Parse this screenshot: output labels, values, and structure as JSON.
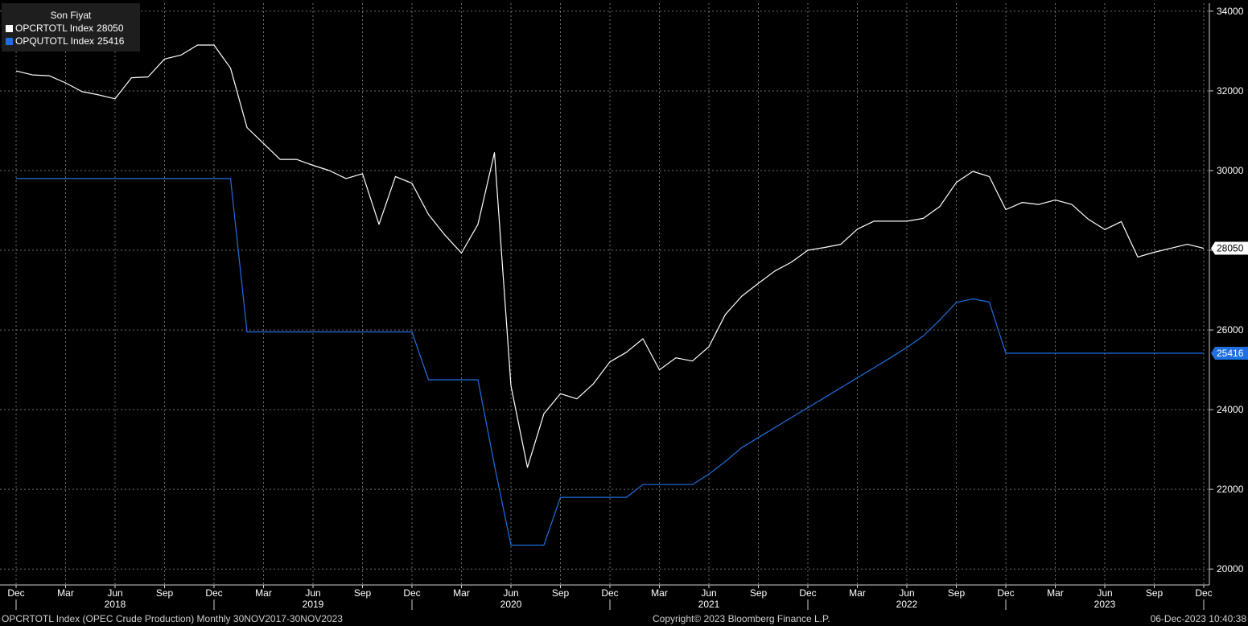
{
  "legend": {
    "title": "Son Fiyat",
    "series": [
      {
        "label": "OPCRTOTL Index",
        "value": "28050",
        "color": "#ffffff"
      },
      {
        "label": "OPQUTOTL Index",
        "value": "25416",
        "color": "#1f6fe0"
      }
    ]
  },
  "footer": {
    "left": "OPCRTOTL Index (OPEC Crude Production)  Monthly 30NOV2017-30NOV2023",
    "center": "Copyright© 2023 Bloomberg Finance L.P.",
    "right": "06-Dec-2023 10:40:38"
  },
  "colors": {
    "background": "#000000",
    "grid": "#6e6e6e",
    "axis": "#d0d0d0",
    "crude": "#ffffff",
    "quota": "#1f6fe0",
    "crude_tag_bg": "#ffffff",
    "crude_tag_text": "#000000",
    "quota_tag_bg": "#1f6fe0",
    "quota_tag_text": "#ffffff"
  },
  "chart_data": {
    "type": "line",
    "title": "",
    "xlabel": "",
    "ylabel": "",
    "x_start": "2017-12",
    "ylim": [
      19600,
      34200
    ],
    "yticks": [
      20000,
      22000,
      24000,
      26000,
      28000,
      30000,
      32000,
      34000
    ],
    "grid": true,
    "legend_position": "top-left",
    "x_ticks": [
      {
        "i": 0,
        "label": "Dec"
      },
      {
        "i": 3,
        "label": "Mar"
      },
      {
        "i": 6,
        "label": "Jun"
      },
      {
        "i": 9,
        "label": "Sep"
      },
      {
        "i": 12,
        "label": "Dec"
      },
      {
        "i": 15,
        "label": "Mar"
      },
      {
        "i": 18,
        "label": "Jun"
      },
      {
        "i": 21,
        "label": "Sep"
      },
      {
        "i": 24,
        "label": "Dec"
      },
      {
        "i": 27,
        "label": "Mar"
      },
      {
        "i": 30,
        "label": "Jun"
      },
      {
        "i": 33,
        "label": "Sep"
      },
      {
        "i": 36,
        "label": "Dec"
      },
      {
        "i": 39,
        "label": "Mar"
      },
      {
        "i": 42,
        "label": "Jun"
      },
      {
        "i": 45,
        "label": "Sep"
      },
      {
        "i": 48,
        "label": "Dec"
      },
      {
        "i": 51,
        "label": "Mar"
      },
      {
        "i": 54,
        "label": "Jun"
      },
      {
        "i": 57,
        "label": "Sep"
      },
      {
        "i": 60,
        "label": "Dec"
      },
      {
        "i": 63,
        "label": "Mar"
      },
      {
        "i": 66,
        "label": "Jun"
      },
      {
        "i": 69,
        "label": "Sep"
      },
      {
        "i": 72,
        "label": "Dec"
      }
    ],
    "year_labels": [
      {
        "i": 6,
        "label": "2018"
      },
      {
        "i": 18,
        "label": "2019"
      },
      {
        "i": 30,
        "label": "2020"
      },
      {
        "i": 42,
        "label": "2021"
      },
      {
        "i": 54,
        "label": "2022"
      },
      {
        "i": 66,
        "label": "2023"
      }
    ],
    "series": [
      {
        "name": "OPCRTOTL Index",
        "last_value": "28050",
        "values": [
          32500,
          32400,
          32380,
          32200,
          31980,
          31900,
          31800,
          32330,
          32350,
          32800,
          32900,
          33150,
          33150,
          32570,
          31080,
          30680,
          30280,
          30280,
          30130,
          30000,
          29800,
          29920,
          28650,
          29850,
          29680,
          28900,
          28380,
          27930,
          28650,
          30450,
          24600,
          22550,
          23900,
          24400,
          24270,
          24650,
          25200,
          25440,
          25780,
          25000,
          25300,
          25220,
          25580,
          26390,
          26850,
          27170,
          27480,
          27700,
          28000,
          28070,
          28150,
          28530,
          28730,
          28730,
          28730,
          28800,
          29100,
          29700,
          29980,
          29850,
          29020,
          29200,
          29150,
          29260,
          29150,
          28780,
          28520,
          28720,
          27830,
          27950,
          28050,
          28150,
          28050
        ]
      },
      {
        "name": "OPQUTOTL Index",
        "last_value": "25416",
        "values": [
          29800,
          29800,
          29800,
          29800,
          29800,
          29800,
          29800,
          29800,
          29800,
          29800,
          29800,
          29800,
          29800,
          29800,
          25950,
          25950,
          25950,
          25950,
          25950,
          25950,
          25950,
          25950,
          25950,
          25950,
          25950,
          24750,
          24750,
          24750,
          24750,
          22600,
          20600,
          20600,
          20600,
          21800,
          21800,
          21800,
          21800,
          21800,
          22120,
          22120,
          22120,
          22120,
          22380,
          22700,
          23050,
          23300,
          23550,
          23800,
          24050,
          24300,
          24550,
          24800,
          25050,
          25300,
          25560,
          25850,
          26250,
          26690,
          26780,
          26700,
          25416,
          25416,
          25416,
          25416,
          25416,
          25416,
          25416,
          25416,
          25416,
          25416,
          25416,
          25416,
          25416
        ]
      }
    ]
  }
}
